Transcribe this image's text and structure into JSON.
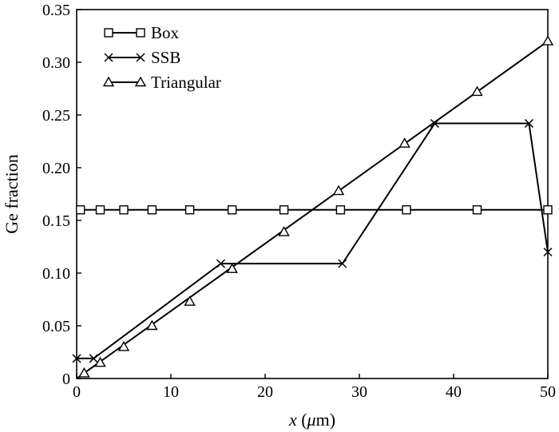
{
  "chart_data": {
    "type": "line",
    "xlabel": "x (μm)",
    "xlabel_parts": {
      "var": "x",
      "unit_open": " (",
      "mu": "μ",
      "unit_rest": "m)"
    },
    "ylabel": "Ge fraction",
    "xlim": [
      0,
      50
    ],
    "ylim": [
      0,
      0.35
    ],
    "x_ticks": [
      0,
      10,
      20,
      30,
      40,
      50
    ],
    "x_tick_labels": [
      "0",
      "10",
      "20",
      "30",
      "40",
      "50"
    ],
    "y_ticks": [
      0,
      0.05,
      0.1,
      0.15,
      0.2,
      0.25,
      0.3,
      0.35
    ],
    "y_tick_labels": [
      "0",
      "0.05",
      "0.10",
      "0.15",
      "0.20",
      "0.25",
      "0.30",
      "0.35"
    ],
    "grid": false,
    "legend_position": "top-left",
    "series": [
      {
        "name": "Box",
        "marker": "square",
        "line_x": [
          0,
          50
        ],
        "line_y": [
          0.16,
          0.16
        ],
        "x": [
          0.4,
          2.5,
          5.0,
          8.0,
          12.0,
          16.5,
          22.0,
          28.0,
          35.0,
          42.5,
          50.0
        ],
        "y": [
          0.16,
          0.16,
          0.16,
          0.16,
          0.16,
          0.16,
          0.16,
          0.16,
          0.16,
          0.16,
          0.16
        ]
      },
      {
        "name": "SSB",
        "marker": "x",
        "x": [
          0,
          1.8,
          15.3,
          28.2,
          38.0,
          48.0,
          50.0
        ],
        "y": [
          0.019,
          0.019,
          0.109,
          0.109,
          0.242,
          0.242,
          0.12
        ]
      },
      {
        "name": "Triangular",
        "marker": "triangle",
        "line_x": [
          0,
          50
        ],
        "line_y": [
          0,
          0.32
        ],
        "x": [
          0.8,
          2.5,
          5.0,
          8.0,
          12.0,
          16.5,
          22.0,
          27.8,
          34.8,
          42.5,
          50.0
        ],
        "y": [
          0.005,
          0.015,
          0.03,
          0.05,
          0.073,
          0.104,
          0.139,
          0.178,
          0.223,
          0.272,
          0.32
        ]
      }
    ]
  }
}
